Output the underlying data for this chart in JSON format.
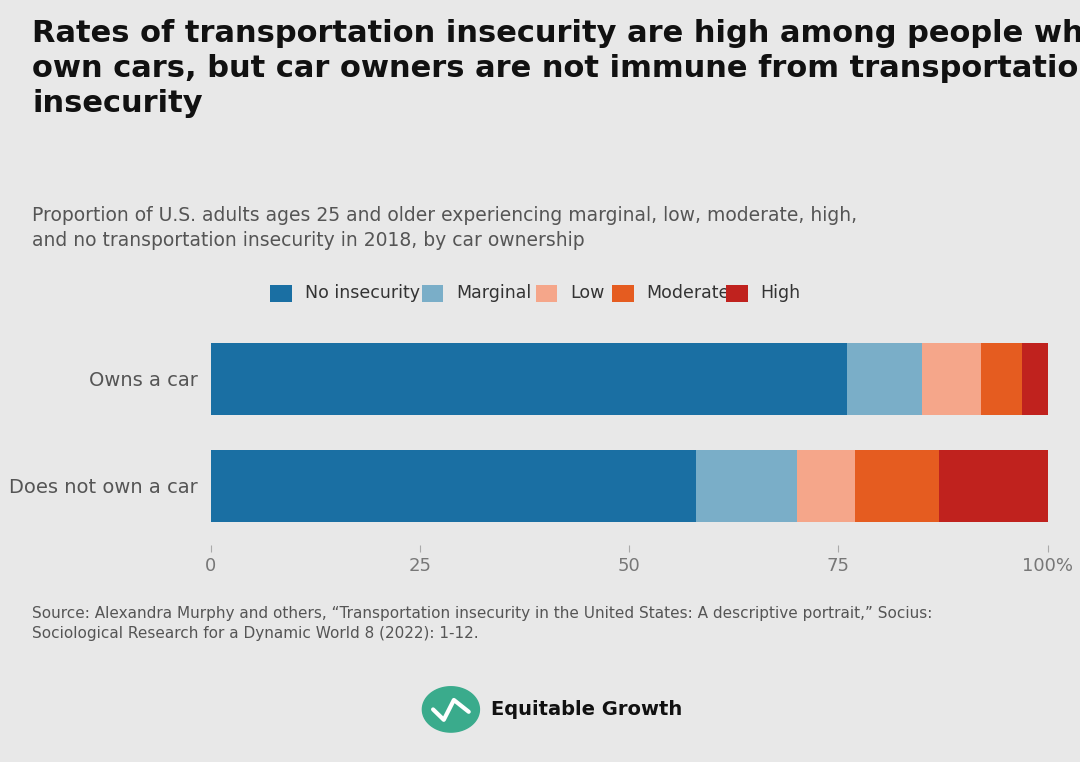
{
  "title": "Rates of transportation insecurity are high among people who don’t own cars, but car owners are not immune from transportation insecurity",
  "subtitle": "Proportion of U.S. adults ages 25 and older experiencing marginal, low, moderate, high,\nand no transportation insecurity in 2018, by car ownership",
  "source": "Source: Alexandra Murphy and others, “Transportation insecurity in the United States: A descriptive portrait,” Socius:\nSociological Research for a Dynamic World 8 (2022): 1-12.",
  "categories": [
    "Owns a car",
    "Does not own a car"
  ],
  "segments": [
    "No insecurity",
    "Marginal",
    "Low",
    "Moderate",
    "High"
  ],
  "colors": [
    "#1a6fa3",
    "#7aaec8",
    "#f5a68a",
    "#e55c20",
    "#c0221e"
  ],
  "data": [
    [
      76.0,
      9.0,
      7.0,
      5.0,
      3.0
    ],
    [
      58.0,
      12.0,
      7.0,
      10.0,
      13.0
    ]
  ],
  "background_color": "#e8e8e8",
  "xlim": [
    0,
    100
  ],
  "xticks": [
    0,
    25,
    50,
    75,
    100
  ],
  "xticklabels": [
    "0",
    "25",
    "50",
    "75",
    "100%"
  ],
  "title_fontsize": 22,
  "subtitle_fontsize": 13.5,
  "legend_fontsize": 12.5,
  "ytick_fontsize": 14,
  "xtick_fontsize": 13,
  "source_fontsize": 11
}
